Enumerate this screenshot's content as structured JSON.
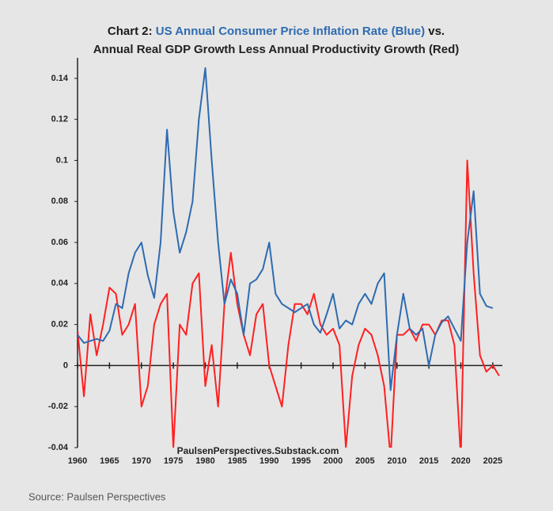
{
  "chart_data": {
    "type": "line",
    "title": [
      "Chart 2:",
      "US Annual Consumer Price Inflation Rate (Blue)",
      "vs."
    ],
    "title_colors": [
      "#1a1a1a",
      "#2e6bb0",
      "#1a1a1a"
    ],
    "subtitle": "Annual Real GDP Growth Less Annual Productivity Growth (Red)",
    "subtitle_color": "#e8211f",
    "watermark": "PaulsenPerspectives.Substack.com",
    "source": "Source: Paulsen Perspectives",
    "x": [
      1960,
      1961,
      1962,
      1963,
      1964,
      1965,
      1966,
      1967,
      1968,
      1969,
      1970,
      1971,
      1972,
      1973,
      1974,
      1975,
      1976,
      1977,
      1978,
      1979,
      1980,
      1981,
      1982,
      1983,
      1984,
      1985,
      1986,
      1987,
      1988,
      1989,
      1990,
      1991,
      1992,
      1993,
      1994,
      1995,
      1996,
      1997,
      1998,
      1999,
      2000,
      2001,
      2002,
      2003,
      2004,
      2005,
      2006,
      2007,
      2008,
      2009,
      2010,
      2011,
      2012,
      2013,
      2014,
      2015,
      2016,
      2017,
      2018,
      2019,
      2020,
      2021,
      2022,
      2023,
      2024,
      2025,
      2026
    ],
    "series": [
      {
        "name": "US Annual Consumer Price Inflation Rate",
        "color": "#2e6bb0",
        "values": [
          0.015,
          0.011,
          0.012,
          0.013,
          0.012,
          0.017,
          0.03,
          0.028,
          0.045,
          0.055,
          0.06,
          0.044,
          0.033,
          0.06,
          0.115,
          0.075,
          0.055,
          0.065,
          0.08,
          0.12,
          0.145,
          0.1,
          0.06,
          0.03,
          0.042,
          0.035,
          0.015,
          0.04,
          0.042,
          0.047,
          0.06,
          0.035,
          0.03,
          0.028,
          0.026,
          0.028,
          0.03,
          0.02,
          0.016,
          0.025,
          0.035,
          0.018,
          0.022,
          0.02,
          0.03,
          0.035,
          0.03,
          0.04,
          0.045,
          -0.012,
          0.015,
          0.035,
          0.018,
          0.015,
          0.018,
          0.0,
          0.015,
          0.021,
          0.024,
          0.018,
          0.012,
          0.06,
          0.085,
          0.035,
          0.029,
          0.028,
          null
        ]
      },
      {
        "name": "Annual Real GDP Growth Less Annual Productivity Growth",
        "color": "#ff2020",
        "values": [
          0.017,
          -0.015,
          0.025,
          0.005,
          0.02,
          0.038,
          0.035,
          0.015,
          0.02,
          0.03,
          -0.02,
          -0.01,
          0.02,
          0.03,
          0.035,
          -0.04,
          0.02,
          0.015,
          0.04,
          0.045,
          -0.01,
          0.01,
          -0.02,
          0.03,
          0.055,
          0.03,
          0.015,
          0.005,
          0.025,
          0.03,
          0.0,
          -0.01,
          -0.02,
          0.01,
          0.03,
          0.03,
          0.025,
          0.035,
          0.02,
          0.015,
          0.018,
          0.01,
          -0.04,
          -0.005,
          0.01,
          0.018,
          0.015,
          0.005,
          -0.01,
          -0.045,
          0.015,
          0.015,
          0.018,
          0.012,
          0.02,
          0.02,
          0.015,
          0.022,
          0.022,
          0.01,
          -0.045,
          0.1,
          0.045,
          0.005,
          -0.003,
          0.0,
          -0.005
        ]
      }
    ],
    "xlim": [
      1960,
      2026.5
    ],
    "xticks": [
      1960,
      1965,
      1970,
      1975,
      1980,
      1985,
      1990,
      1995,
      2000,
      2005,
      2010,
      2015,
      2020,
      2025
    ],
    "ylim": [
      -0.04,
      0.15
    ],
    "yticks": [
      -0.04,
      -0.02,
      0,
      0.02,
      0.04,
      0.06,
      0.08,
      0.1,
      0.12,
      0.14
    ],
    "grid": false
  }
}
